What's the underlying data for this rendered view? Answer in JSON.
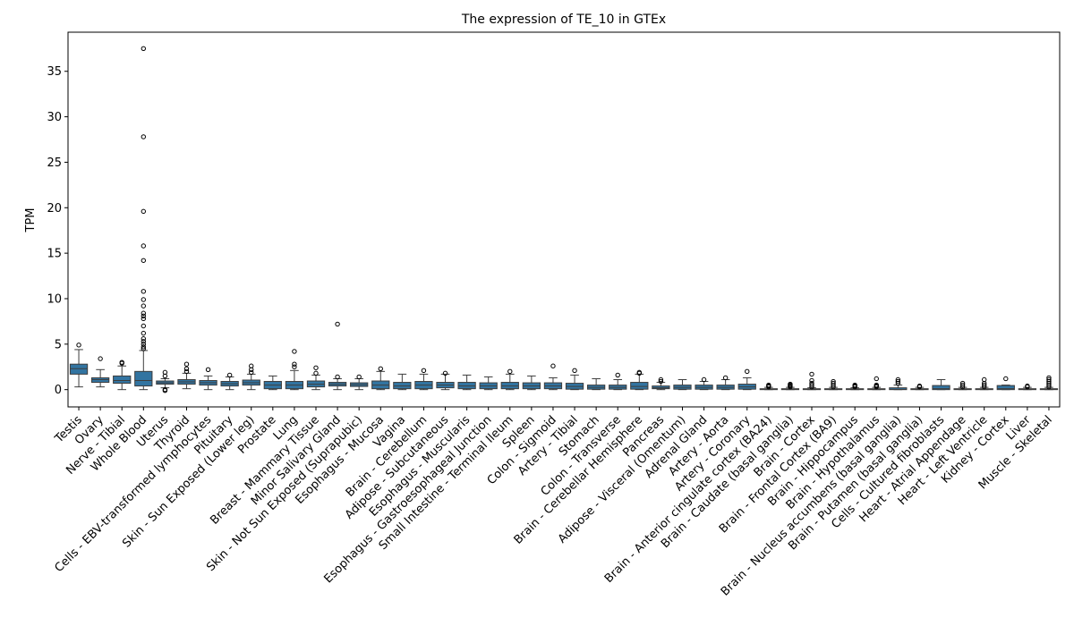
{
  "chart_data": {
    "type": "box",
    "title": "The expression of TE_10 in GTEx",
    "xlabel": "",
    "ylabel": "TPM",
    "ylim": [
      -1.9,
      39.3
    ],
    "yticks": [
      0,
      5,
      10,
      15,
      20,
      25,
      30,
      35
    ],
    "box_color": "#3274a1",
    "grid": false,
    "categories": [
      "Testis",
      "Ovary",
      "Nerve - Tibial",
      "Whole Blood",
      "Uterus",
      "Thyroid",
      "Cells - EBV-transformed lymphocytes",
      "Pituitary",
      "Skin - Sun Exposed (Lower leg)",
      "Prostate",
      "Lung",
      "Breast - Mammary Tissue",
      "Minor Salivary Gland",
      "Skin - Not Sun Exposed (Suprapubic)",
      "Esophagus - Mucosa",
      "Vagina",
      "Brain - Cerebellum",
      "Adipose - Subcutaneous",
      "Esophagus - Muscularis",
      "Esophagus - Gastroesophageal Junction",
      "Small Intestine - Terminal Ileum",
      "Spleen",
      "Colon - Sigmoid",
      "Artery - Tibial",
      "Stomach",
      "Colon - Transverse",
      "Brain - Cerebellar Hemisphere",
      "Pancreas",
      "Adipose - Visceral (Omentum)",
      "Adrenal Gland",
      "Artery - Aorta",
      "Artery - Coronary",
      "Brain - Anterior cingulate cortex (BA24)",
      "Brain - Caudate (basal ganglia)",
      "Brain - Cortex",
      "Brain - Frontal Cortex (BA9)",
      "Brain - Hippocampus",
      "Brain - Hypothalamus",
      "Brain - Nucleus accumbens (basal ganglia)",
      "Brain - Putamen (basal ganglia)",
      "Cells - Cultured fibroblasts",
      "Heart - Atrial Appendage",
      "Heart - Left Ventricle",
      "Kidney - Cortex",
      "Liver",
      "Muscle - Skeletal"
    ],
    "boxes": [
      {
        "whislo": 0.3,
        "q1": 1.7,
        "med": 2.3,
        "q3": 2.8,
        "whishi": 4.4,
        "fliers": [
          4.9
        ]
      },
      {
        "whislo": 0.3,
        "q1": 0.8,
        "med": 1.1,
        "q3": 1.3,
        "whishi": 2.2,
        "fliers": [
          3.4
        ]
      },
      {
        "whislo": 0.0,
        "q1": 0.7,
        "med": 1.0,
        "q3": 1.5,
        "whishi": 2.6,
        "fliers": [
          2.9,
          3.0
        ]
      },
      {
        "whislo": 0.0,
        "q1": 0.4,
        "med": 1.0,
        "q3": 2.0,
        "whishi": 4.3,
        "fliers": [
          4.5,
          4.7,
          5.0,
          5.3,
          5.6,
          6.2,
          7.0,
          7.8,
          8.1,
          8.4,
          9.2,
          9.9,
          10.8,
          14.2,
          15.8,
          19.6,
          27.8,
          37.5
        ]
      },
      {
        "whislo": 0.2,
        "q1": 0.6,
        "med": 0.75,
        "q3": 0.95,
        "whishi": 1.2,
        "fliers": [
          1.5,
          1.9,
          0.0,
          -0.1
        ]
      },
      {
        "whislo": 0.1,
        "q1": 0.6,
        "med": 0.85,
        "q3": 1.1,
        "whishi": 1.8,
        "fliers": [
          2.0,
          2.3,
          2.8
        ]
      },
      {
        "whislo": 0.0,
        "q1": 0.5,
        "med": 0.75,
        "q3": 1.0,
        "whishi": 1.5,
        "fliers": [
          2.2
        ]
      },
      {
        "whislo": 0.0,
        "q1": 0.4,
        "med": 0.65,
        "q3": 0.9,
        "whishi": 1.4,
        "fliers": [
          1.6
        ]
      },
      {
        "whislo": 0.0,
        "q1": 0.5,
        "med": 0.75,
        "q3": 1.05,
        "whishi": 1.7,
        "fliers": [
          1.9,
          2.2,
          2.6
        ]
      },
      {
        "whislo": 0.0,
        "q1": 0.1,
        "med": 0.5,
        "q3": 0.9,
        "whishi": 1.5,
        "fliers": []
      },
      {
        "whislo": 0.0,
        "q1": 0.1,
        "med": 0.5,
        "q3": 0.9,
        "whishi": 2.1,
        "fliers": [
          2.5,
          2.8,
          4.2
        ]
      },
      {
        "whislo": 0.0,
        "q1": 0.3,
        "med": 0.6,
        "q3": 0.95,
        "whishi": 1.6,
        "fliers": [
          1.8,
          2.4
        ]
      },
      {
        "whislo": 0.0,
        "q1": 0.4,
        "med": 0.6,
        "q3": 0.8,
        "whishi": 1.2,
        "fliers": [
          1.4,
          7.2
        ]
      },
      {
        "whislo": 0.0,
        "q1": 0.35,
        "med": 0.55,
        "q3": 0.75,
        "whishi": 1.2,
        "fliers": [
          1.4
        ]
      },
      {
        "whislo": 0.0,
        "q1": 0.1,
        "med": 0.5,
        "q3": 0.95,
        "whishi": 2.0,
        "fliers": [
          2.3
        ]
      },
      {
        "whislo": 0.0,
        "q1": 0.1,
        "med": 0.4,
        "q3": 0.8,
        "whishi": 1.7,
        "fliers": []
      },
      {
        "whislo": 0.0,
        "q1": 0.1,
        "med": 0.5,
        "q3": 0.9,
        "whishi": 1.7,
        "fliers": [
          2.1
        ]
      },
      {
        "whislo": 0.0,
        "q1": 0.2,
        "med": 0.5,
        "q3": 0.8,
        "whishi": 1.7,
        "fliers": [
          1.8
        ]
      },
      {
        "whislo": 0.0,
        "q1": 0.1,
        "med": 0.4,
        "q3": 0.8,
        "whishi": 1.6,
        "fliers": []
      },
      {
        "whislo": 0.0,
        "q1": 0.1,
        "med": 0.4,
        "q3": 0.75,
        "whishi": 1.4,
        "fliers": []
      },
      {
        "whislo": 0.0,
        "q1": 0.1,
        "med": 0.4,
        "q3": 0.8,
        "whishi": 1.7,
        "fliers": [
          2.0
        ]
      },
      {
        "whislo": 0.0,
        "q1": 0.1,
        "med": 0.4,
        "q3": 0.75,
        "whishi": 1.5,
        "fliers": []
      },
      {
        "whislo": 0.0,
        "q1": 0.1,
        "med": 0.4,
        "q3": 0.75,
        "whishi": 1.3,
        "fliers": [
          2.6
        ]
      },
      {
        "whislo": 0.0,
        "q1": 0.05,
        "med": 0.35,
        "q3": 0.7,
        "whishi": 1.6,
        "fliers": [
          2.1
        ]
      },
      {
        "whislo": 0.0,
        "q1": 0.05,
        "med": 0.25,
        "q3": 0.5,
        "whishi": 1.2,
        "fliers": []
      },
      {
        "whislo": 0.0,
        "q1": 0.05,
        "med": 0.25,
        "q3": 0.5,
        "whishi": 1.1,
        "fliers": [
          1.6
        ]
      },
      {
        "whislo": 0.0,
        "q1": 0.05,
        "med": 0.35,
        "q3": 0.8,
        "whishi": 1.7,
        "fliers": [
          1.8,
          1.9
        ]
      },
      {
        "whislo": 0.0,
        "q1": 0.1,
        "med": 0.2,
        "q3": 0.4,
        "whishi": 0.8,
        "fliers": [
          0.9,
          1.1
        ]
      },
      {
        "whislo": 0.0,
        "q1": 0.05,
        "med": 0.25,
        "q3": 0.5,
        "whishi": 1.1,
        "fliers": []
      },
      {
        "whislo": 0.0,
        "q1": 0.05,
        "med": 0.25,
        "q3": 0.5,
        "whishi": 0.9,
        "fliers": [
          1.1
        ]
      },
      {
        "whislo": 0.0,
        "q1": 0.05,
        "med": 0.25,
        "q3": 0.5,
        "whishi": 1.1,
        "fliers": [
          1.3
        ]
      },
      {
        "whislo": 0.0,
        "q1": 0.05,
        "med": 0.3,
        "q3": 0.6,
        "whishi": 1.3,
        "fliers": [
          2.0
        ]
      },
      {
        "whislo": 0.0,
        "q1": 0.0,
        "med": 0.02,
        "q3": 0.1,
        "whishi": 0.25,
        "fliers": [
          0.3,
          0.4,
          0.5
        ]
      },
      {
        "whislo": 0.0,
        "q1": 0.0,
        "med": 0.02,
        "q3": 0.1,
        "whishi": 0.25,
        "fliers": [
          0.3,
          0.4,
          0.5,
          0.6
        ]
      },
      {
        "whislo": 0.0,
        "q1": 0.0,
        "med": 0.02,
        "q3": 0.1,
        "whishi": 0.2,
        "fliers": [
          0.3,
          0.5,
          0.7,
          1.0,
          1.7
        ]
      },
      {
        "whislo": 0.0,
        "q1": 0.0,
        "med": 0.02,
        "q3": 0.1,
        "whishi": 0.25,
        "fliers": [
          0.3,
          0.5,
          0.7,
          0.9
        ]
      },
      {
        "whislo": 0.0,
        "q1": 0.0,
        "med": 0.02,
        "q3": 0.1,
        "whishi": 0.2,
        "fliers": [
          0.3,
          0.4,
          0.5
        ]
      },
      {
        "whislo": 0.0,
        "q1": 0.0,
        "med": 0.02,
        "q3": 0.1,
        "whishi": 0.25,
        "fliers": [
          0.3,
          0.4,
          0.5,
          1.2
        ]
      },
      {
        "whislo": 0.0,
        "q1": 0.0,
        "med": 0.03,
        "q3": 0.2,
        "whishi": 0.5,
        "fliers": [
          0.7,
          0.9,
          1.1
        ]
      },
      {
        "whislo": 0.0,
        "q1": 0.0,
        "med": 0.02,
        "q3": 0.1,
        "whishi": 0.25,
        "fliers": [
          0.3,
          0.4
        ]
      },
      {
        "whislo": 0.0,
        "q1": 0.0,
        "med": 0.1,
        "q3": 0.45,
        "whishi": 1.1,
        "fliers": []
      },
      {
        "whislo": 0.0,
        "q1": 0.0,
        "med": 0.02,
        "q3": 0.1,
        "whishi": 0.25,
        "fliers": [
          0.3,
          0.5,
          0.7
        ]
      },
      {
        "whislo": 0.0,
        "q1": 0.0,
        "med": 0.02,
        "q3": 0.1,
        "whishi": 0.25,
        "fliers": [
          0.3,
          0.5,
          0.7,
          1.1
        ]
      },
      {
        "whislo": 0.0,
        "q1": 0.0,
        "med": 0.1,
        "q3": 0.45,
        "whishi": 0.5,
        "fliers": [
          1.2
        ]
      },
      {
        "whislo": 0.0,
        "q1": 0.0,
        "med": 0.02,
        "q3": 0.1,
        "whishi": 0.25,
        "fliers": [
          0.3,
          0.4
        ]
      },
      {
        "whislo": 0.0,
        "q1": 0.0,
        "med": 0.02,
        "q3": 0.1,
        "whishi": 0.25,
        "fliers": [
          0.3,
          0.5,
          0.7,
          0.9,
          1.1,
          1.3
        ]
      }
    ]
  }
}
